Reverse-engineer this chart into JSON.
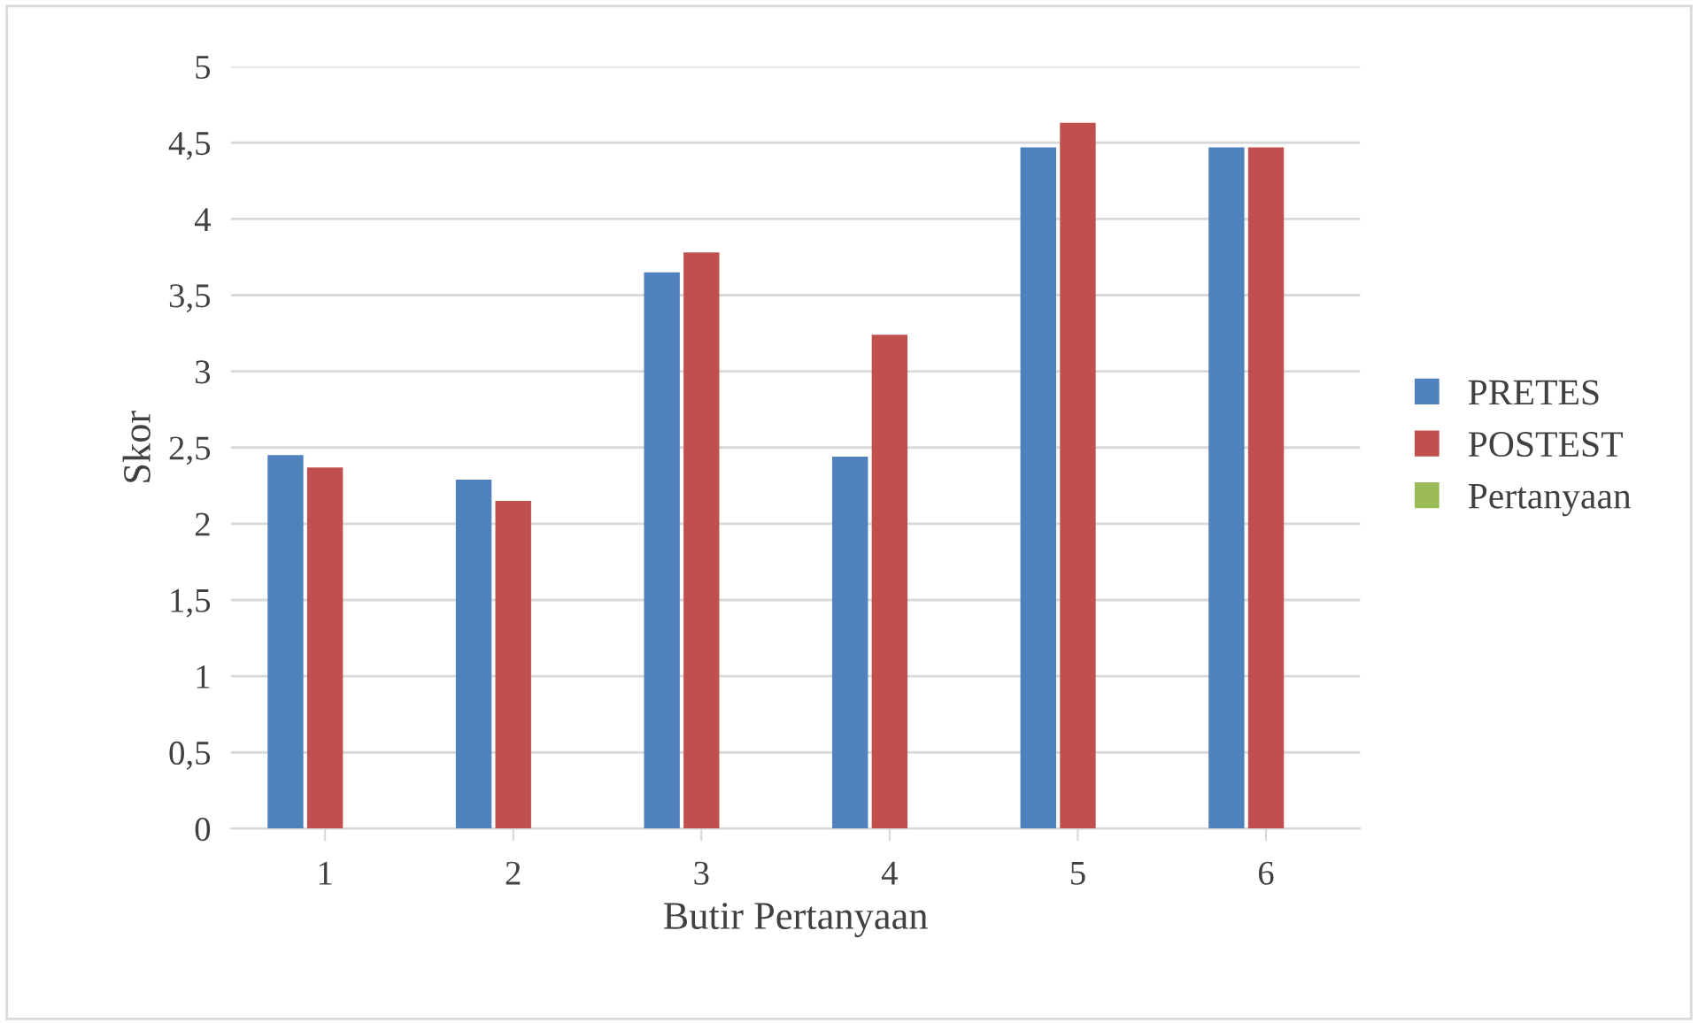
{
  "chart_data": {
    "type": "bar",
    "xlabel": "Butir Pertanyaan",
    "ylabel": "Skor",
    "categories": [
      "1",
      "2",
      "3",
      "4",
      "5",
      "6"
    ],
    "series": [
      {
        "name": "PRETES",
        "color": "#4f81bd",
        "values": [
          2.45,
          2.29,
          3.65,
          2.44,
          4.47,
          4.47
        ]
      },
      {
        "name": "POSTEST",
        "color": "#c0504d",
        "values": [
          2.37,
          2.15,
          3.78,
          3.24,
          4.63,
          4.47
        ]
      },
      {
        "name": "Pertanyaan",
        "color": "#9bbb59",
        "values": [
          null,
          null,
          null,
          null,
          null,
          null
        ]
      }
    ],
    "ylim": [
      0,
      5
    ],
    "yticks": [
      0,
      {
        "value": 0.5,
        "label": "0,5"
      },
      1,
      {
        "value": 1.5,
        "label": "1,5"
      },
      2,
      {
        "value": 2.5,
        "label": "2,5"
      },
      3,
      {
        "value": 3.5,
        "label": "3,5"
      },
      4,
      {
        "value": 4.5,
        "label": "4,5"
      },
      5
    ],
    "grid": "y",
    "legend": "right"
  }
}
